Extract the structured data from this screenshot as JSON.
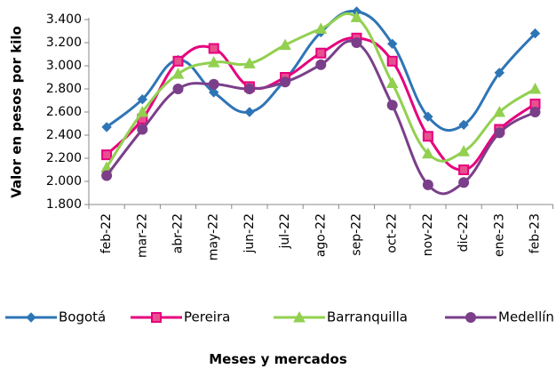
{
  "chart_data": {
    "type": "line",
    "title": "",
    "xlabel": "Meses  y mercados",
    "ylabel": "Valor en pesos por kilo",
    "ylim": [
      1800,
      3400
    ],
    "yticks": [
      "1.800",
      "2.000",
      "2.200",
      "2.400",
      "2.600",
      "2.800",
      "3.000",
      "3.200",
      "3.400"
    ],
    "categories": [
      "feb-22",
      "mar-22",
      "abr-22",
      "may-22",
      "jun-22",
      "jul-22",
      "ago-22",
      "sep-22",
      "oct-22",
      "nov-22",
      "dic-22",
      "ene-23",
      "feb-23"
    ],
    "grid": false,
    "legend": "bottom",
    "smooth": true,
    "series": [
      {
        "name": "Bogotá",
        "color": "#2E75B6",
        "marker": "diamond",
        "values": [
          2470,
          2710,
          3050,
          2770,
          2600,
          2880,
          3290,
          3470,
          3190,
          2560,
          2490,
          2940,
          3280
        ]
      },
      {
        "name": "Pereira",
        "color": "#E6007E",
        "marker": "square",
        "values": [
          2230,
          2540,
          3040,
          3150,
          2820,
          2900,
          3110,
          3240,
          3040,
          2390,
          2100,
          2450,
          2670
        ]
      },
      {
        "name": "Barranquilla",
        "color": "#92D050",
        "marker": "triangle",
        "values": [
          2120,
          2600,
          2930,
          3030,
          3020,
          3180,
          3320,
          3420,
          2850,
          2240,
          2260,
          2600,
          2800
        ]
      },
      {
        "name": "Medellín",
        "color": "#7B3F8A",
        "marker": "circle",
        "values": [
          2050,
          2450,
          2800,
          2840,
          2800,
          2860,
          3010,
          3200,
          2660,
          1970,
          1990,
          2420,
          2600
        ]
      }
    ]
  }
}
